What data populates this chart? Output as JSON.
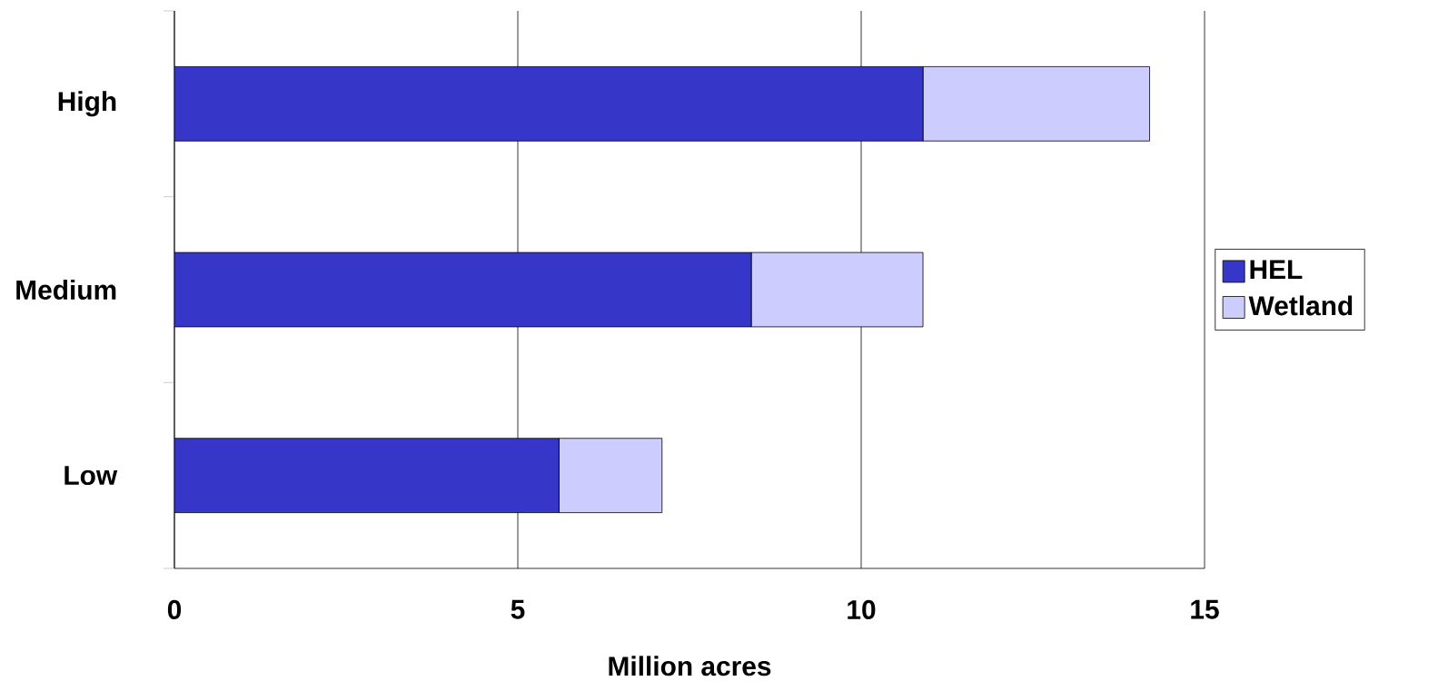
{
  "chart_data": {
    "type": "bar",
    "orientation": "horizontal",
    "stacked": true,
    "categories": [
      "High",
      "Medium",
      "Low"
    ],
    "series": [
      {
        "name": "HEL",
        "color": "#3636c8",
        "values": [
          10.9,
          8.4,
          5.6
        ]
      },
      {
        "name": "Wetland",
        "color": "#ccccff",
        "values": [
          3.3,
          2.5,
          1.5
        ]
      }
    ],
    "xlabel": "Million acres",
    "xlim": [
      0,
      15
    ],
    "xticks": [
      0,
      5,
      10,
      15
    ],
    "grid": "x",
    "legend": "right"
  }
}
